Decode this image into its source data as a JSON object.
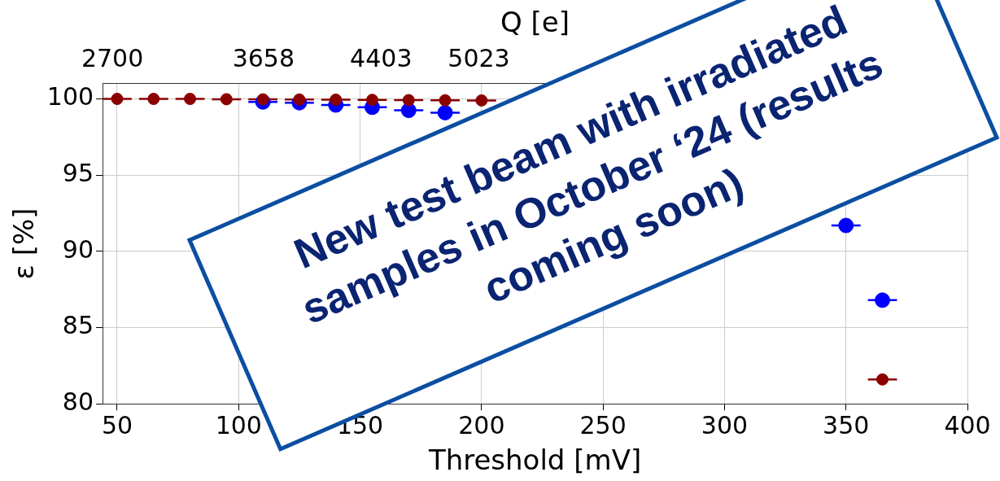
{
  "chart_data": {
    "type": "scatter",
    "xlabel": "Threshold [mV]",
    "ylabel": "ε [%]",
    "x2label": "Q [e]",
    "xlim": [
      44,
      400
    ],
    "xticks": [
      50,
      100,
      150,
      200,
      250,
      300,
      350,
      400
    ],
    "x2lim": [
      2638,
      8120
    ],
    "x2ticks": [
      2700,
      3658,
      4403,
      5023
    ],
    "ylim": [
      80,
      101
    ],
    "yticks": [
      80,
      85,
      90,
      95,
      100
    ],
    "grid": true,
    "legend": false,
    "marker": "circle",
    "series": [
      {
        "color": "#0000ff",
        "x": [
          110,
          125,
          140,
          155,
          170,
          185,
          350,
          365
        ],
        "values": [
          99.8,
          99.75,
          99.6,
          99.45,
          99.25,
          99.1,
          91.7,
          86.8
        ],
        "xerrors": [
          6,
          6,
          6,
          6,
          6,
          6,
          6,
          6
        ]
      },
      {
        "color": "#8b0000",
        "x": [
          50,
          65,
          80,
          95,
          110,
          125,
          140,
          155,
          170,
          185,
          200,
          350,
          365
        ],
        "values": [
          100,
          100,
          100,
          99.98,
          99.97,
          99.96,
          99.95,
          99.94,
          99.92,
          99.91,
          99.9,
          null,
          81.6
        ],
        "xerrors": [
          6,
          6,
          6,
          6,
          6,
          6,
          6,
          6,
          6,
          6,
          6,
          null,
          6
        ]
      }
    ],
    "annotations": [
      "New test beam with irradiated samples in October ‘24 (results coming soon)"
    ]
  }
}
